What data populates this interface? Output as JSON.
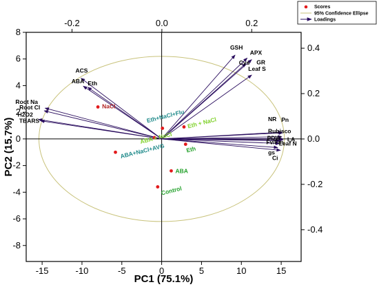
{
  "chart_data": {
    "type": "scatter",
    "subtype": "pca-biplot",
    "xlabel": "PC1 (75.1%)",
    "ylabel": "PC2 (15.7%)",
    "xlim": [
      -17,
      17.5
    ],
    "ylim": [
      -9.2,
      8
    ],
    "x_ticks": [
      -15,
      -10,
      -5,
      0,
      5,
      10,
      15
    ],
    "y_ticks": [
      -8,
      -6,
      -4,
      -2,
      0,
      2,
      4,
      6,
      8
    ],
    "loadings_xlim": [
      -0.302,
      0.31
    ],
    "loadings_ylim": [
      -0.54,
      0.47
    ],
    "top_ticks": [
      -0.2,
      0.0,
      0.2
    ],
    "right_ticks": [
      -0.4,
      -0.2,
      0.0,
      0.2,
      0.4
    ],
    "legend": {
      "position": "top-right",
      "entries": [
        "Scores",
        "95% Confidence Ellipse",
        "Loadings"
      ]
    },
    "ellipse": {
      "rx": 15.4,
      "ry": 6.2,
      "color": "#c8c27a"
    },
    "colors": {
      "score_point": "#e31a1c",
      "loading": "#2a0d5e",
      "ellipse": "#c8c27a"
    },
    "scores": [
      {
        "label": "NaCl",
        "x": -8.0,
        "y": 2.4,
        "color": "#b22222"
      },
      {
        "label": "Eth+NaCl+Flu",
        "x": 0.1,
        "y": 0.8,
        "color": "#1f8a8a"
      },
      {
        "label": "Eth + NaCl",
        "x": 2.8,
        "y": 0.9,
        "color": "#7fd12a"
      },
      {
        "label": "ABA + NaCl",
        "x": -0.9,
        "y": 0.1,
        "color": "#7fd12a"
      },
      {
        "label": "ABA+NaCl+AVG",
        "x": -5.8,
        "y": -1.0,
        "color": "#1f8a8a"
      },
      {
        "label": "Eth",
        "x": 3.0,
        "y": -0.4,
        "color": "#22a02a"
      },
      {
        "label": "ABA",
        "x": 1.2,
        "y": -2.4,
        "color": "#22a02a"
      },
      {
        "label": "Control",
        "x": -0.5,
        "y": -3.6,
        "color": "#22a02a"
      }
    ],
    "loadings": [
      {
        "label": "GSH",
        "x": 0.163,
        "y": 0.37
      },
      {
        "label": "APX",
        "x": 0.19,
        "y": 0.357
      },
      {
        "label": "GR",
        "x": 0.2,
        "y": 0.35
      },
      {
        "label": "Cys",
        "x": 0.187,
        "y": 0.333
      },
      {
        "label": "Leaf S",
        "x": 0.2,
        "y": 0.282
      },
      {
        "label": "ACS",
        "x": -0.18,
        "y": 0.268
      },
      {
        "label": "ABA",
        "x": -0.175,
        "y": 0.233
      },
      {
        "label": "Eth",
        "x": -0.165,
        "y": 0.228
      },
      {
        "label": "Root Na",
        "x": -0.26,
        "y": 0.136
      },
      {
        "label": "Root Cl",
        "x": -0.262,
        "y": 0.124
      },
      {
        "label": "H2O2",
        "x": -0.275,
        "y": 0.086
      },
      {
        "label": "TBARS",
        "x": -0.27,
        "y": 0.08
      },
      {
        "label": "NR",
        "x": 0.267,
        "y": 0.03
      },
      {
        "label": "Pn",
        "x": 0.269,
        "y": 0.027
      },
      {
        "label": "Rubisco",
        "x": 0.267,
        "y": 0.01
      },
      {
        "label": "PDW",
        "x": 0.268,
        "y": 0.002
      },
      {
        "label": "LA",
        "x": 0.27,
        "y": -0.004
      },
      {
        "label": "Fv/Fm",
        "x": 0.263,
        "y": -0.008
      },
      {
        "label": "Leaf N",
        "x": 0.262,
        "y": -0.02
      },
      {
        "label": "gs",
        "x": 0.258,
        "y": -0.038
      },
      {
        "label": "Ci",
        "x": 0.264,
        "y": -0.05
      }
    ]
  }
}
